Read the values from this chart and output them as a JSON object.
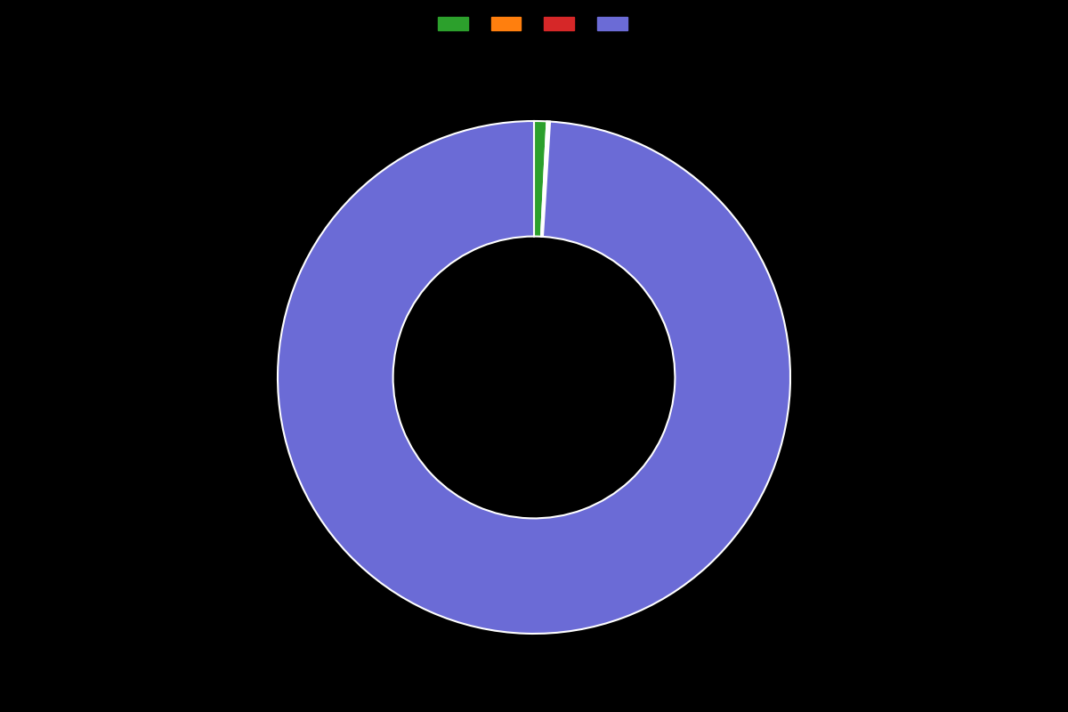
{
  "slices": [
    0.8,
    0.1,
    0.1,
    99.0
  ],
  "colors": [
    "#2ca02c",
    "#ff7f0e",
    "#d62728",
    "#6b6bd6"
  ],
  "legend_labels": [
    "",
    "",
    "",
    ""
  ],
  "background_color": "#000000",
  "wedge_linewidth": 1.5,
  "wedge_linecolor": "#ffffff",
  "donut_width": 0.45,
  "startangle": 90,
  "figsize": [
    12.0,
    8.0
  ],
  "dpi": 100
}
